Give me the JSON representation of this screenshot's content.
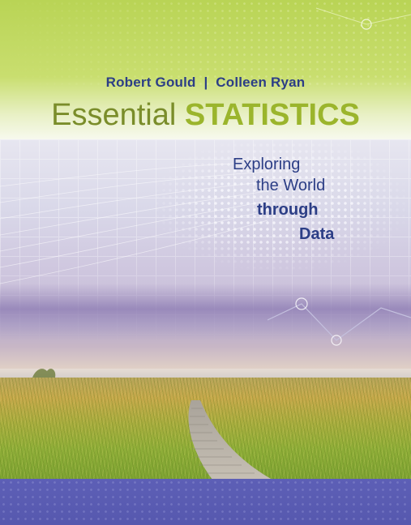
{
  "cover": {
    "authors": "Robert Gould  |  Colleen Ryan",
    "title_light": "Essential ",
    "title_bold": "STATISTICS",
    "subtitle": {
      "line1": "Exploring",
      "line2": "the World",
      "line3": "through",
      "line4": "Data"
    }
  },
  "colors": {
    "green_band": "#b9d455",
    "title_green": "#9bb52c",
    "author_blue": "#2c3e86",
    "bottom_band": "#5d5fb6"
  }
}
